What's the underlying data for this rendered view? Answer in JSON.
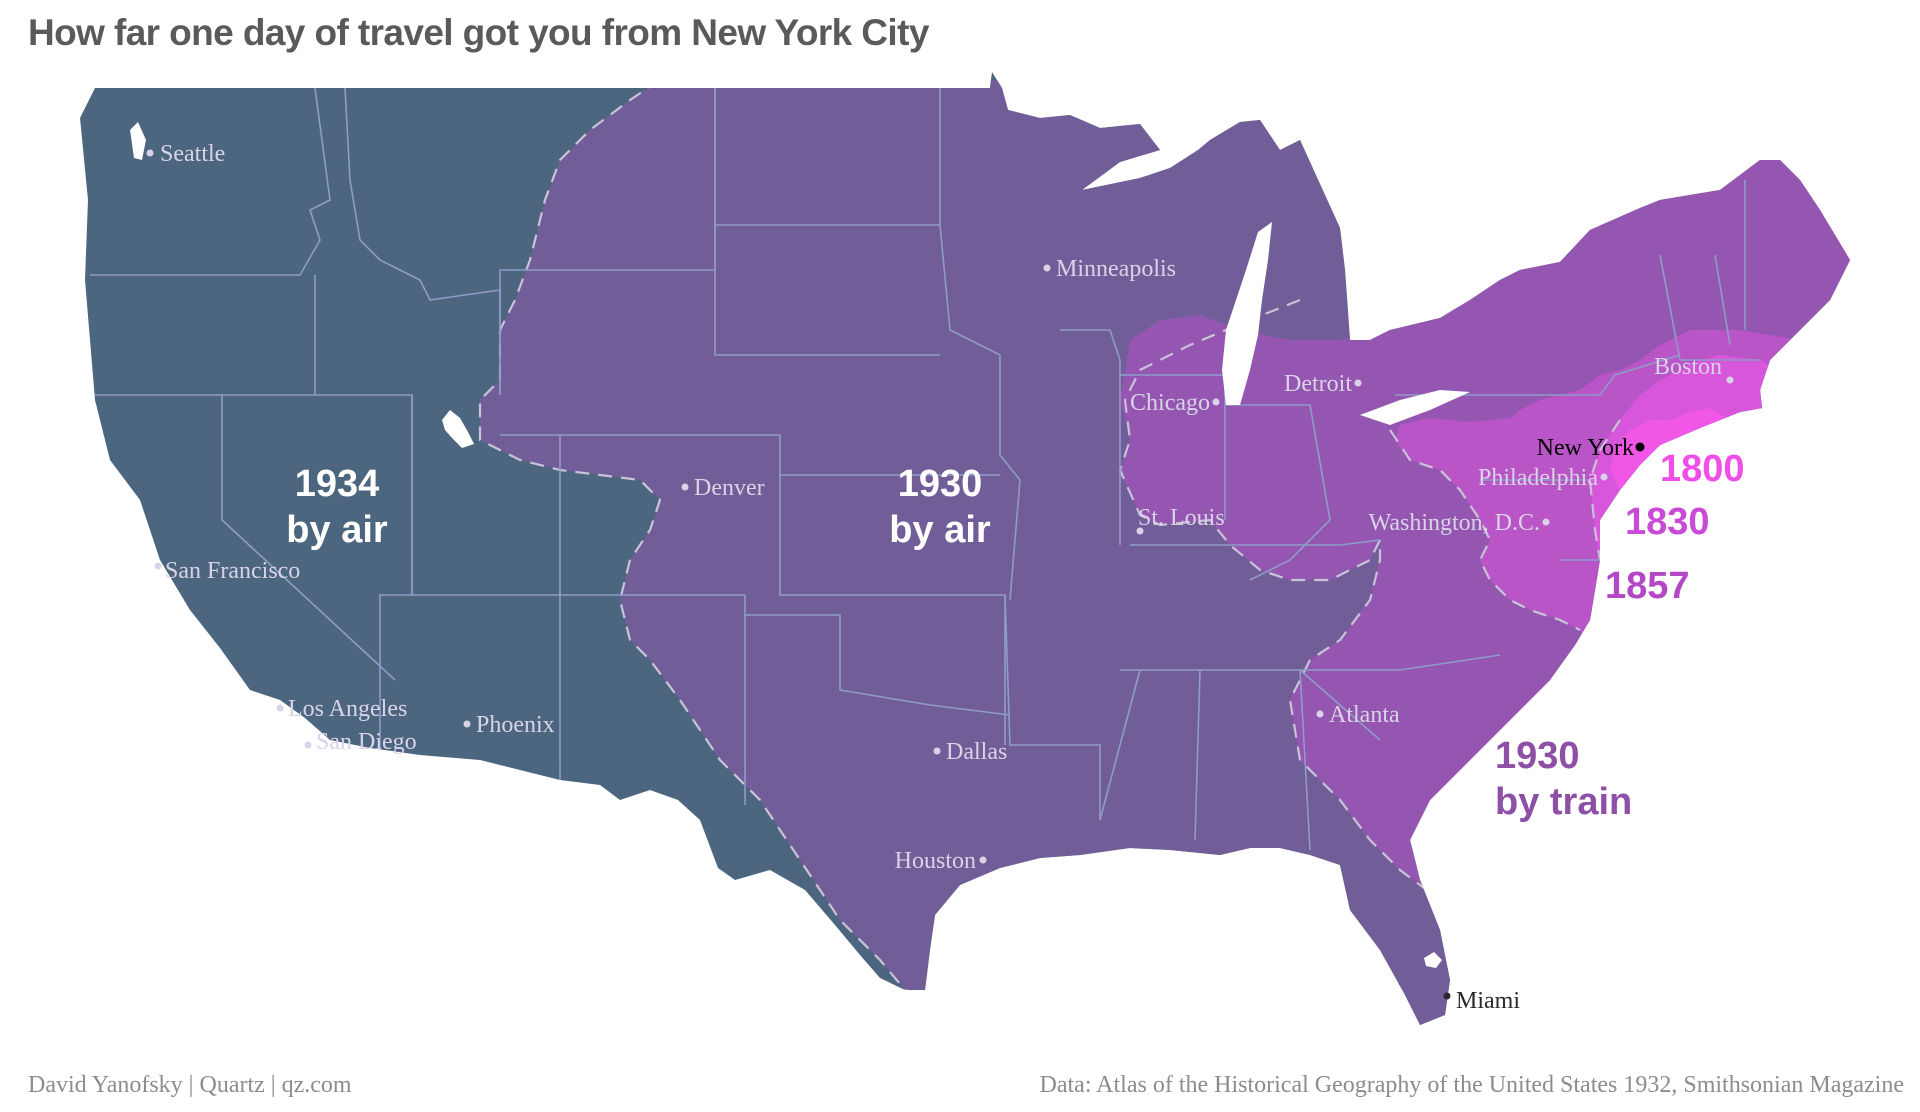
{
  "title": "How far one day of travel got you from New York City",
  "zones": [
    {
      "id": "air1934",
      "line1": "1934",
      "line2": "by air",
      "color": "#ffffff"
    },
    {
      "id": "air1930",
      "line1": "1930",
      "line2": "by air",
      "color": "#ffffff"
    },
    {
      "id": "train1930",
      "line1": "1930",
      "line2": "by train",
      "color": "#8e4fa6"
    },
    {
      "id": "y1857",
      "line1": "1857",
      "color": "#b447c6"
    },
    {
      "id": "y1830",
      "line1": "1830",
      "color": "#c94ad6"
    },
    {
      "id": "y1800",
      "line1": "1800",
      "color": "#f04ee6"
    }
  ],
  "zone_colors": {
    "air1934": "#4b667e",
    "air1930": "#715e98",
    "train1930": "#9456b0",
    "y1857": "#b955c6",
    "y1830": "#d856dc",
    "y1800": "#f157e7",
    "state_lines": "#8e9cc8",
    "boundary_dash": "#c8c3d8"
  },
  "cities": [
    {
      "id": "seattle",
      "name": "Seattle"
    },
    {
      "id": "san-francisco",
      "name": "San Francisco"
    },
    {
      "id": "los-angeles",
      "name": "Los Angeles"
    },
    {
      "id": "san-diego",
      "name": "San Diego"
    },
    {
      "id": "phoenix",
      "name": "Phoenix"
    },
    {
      "id": "denver",
      "name": "Denver"
    },
    {
      "id": "minneapolis",
      "name": "Minneapolis"
    },
    {
      "id": "chicago",
      "name": "Chicago"
    },
    {
      "id": "detroit",
      "name": "Detroit"
    },
    {
      "id": "st-louis",
      "name": "St. Louis"
    },
    {
      "id": "dallas",
      "name": "Dallas"
    },
    {
      "id": "houston",
      "name": "Houston"
    },
    {
      "id": "atlanta",
      "name": "Atlanta"
    },
    {
      "id": "washington",
      "name": "Washington, D.C."
    },
    {
      "id": "philadelphia",
      "name": "Philadelphia"
    },
    {
      "id": "new-york",
      "name": "New York"
    },
    {
      "id": "boston",
      "name": "Boston"
    },
    {
      "id": "miami",
      "name": "Miami"
    }
  ],
  "footer": {
    "credit": "David Yanofsky | Quartz | qz.com",
    "source": "Data: Atlas of the Historical Geography of the United States 1932, Smithsonian Magazine"
  }
}
